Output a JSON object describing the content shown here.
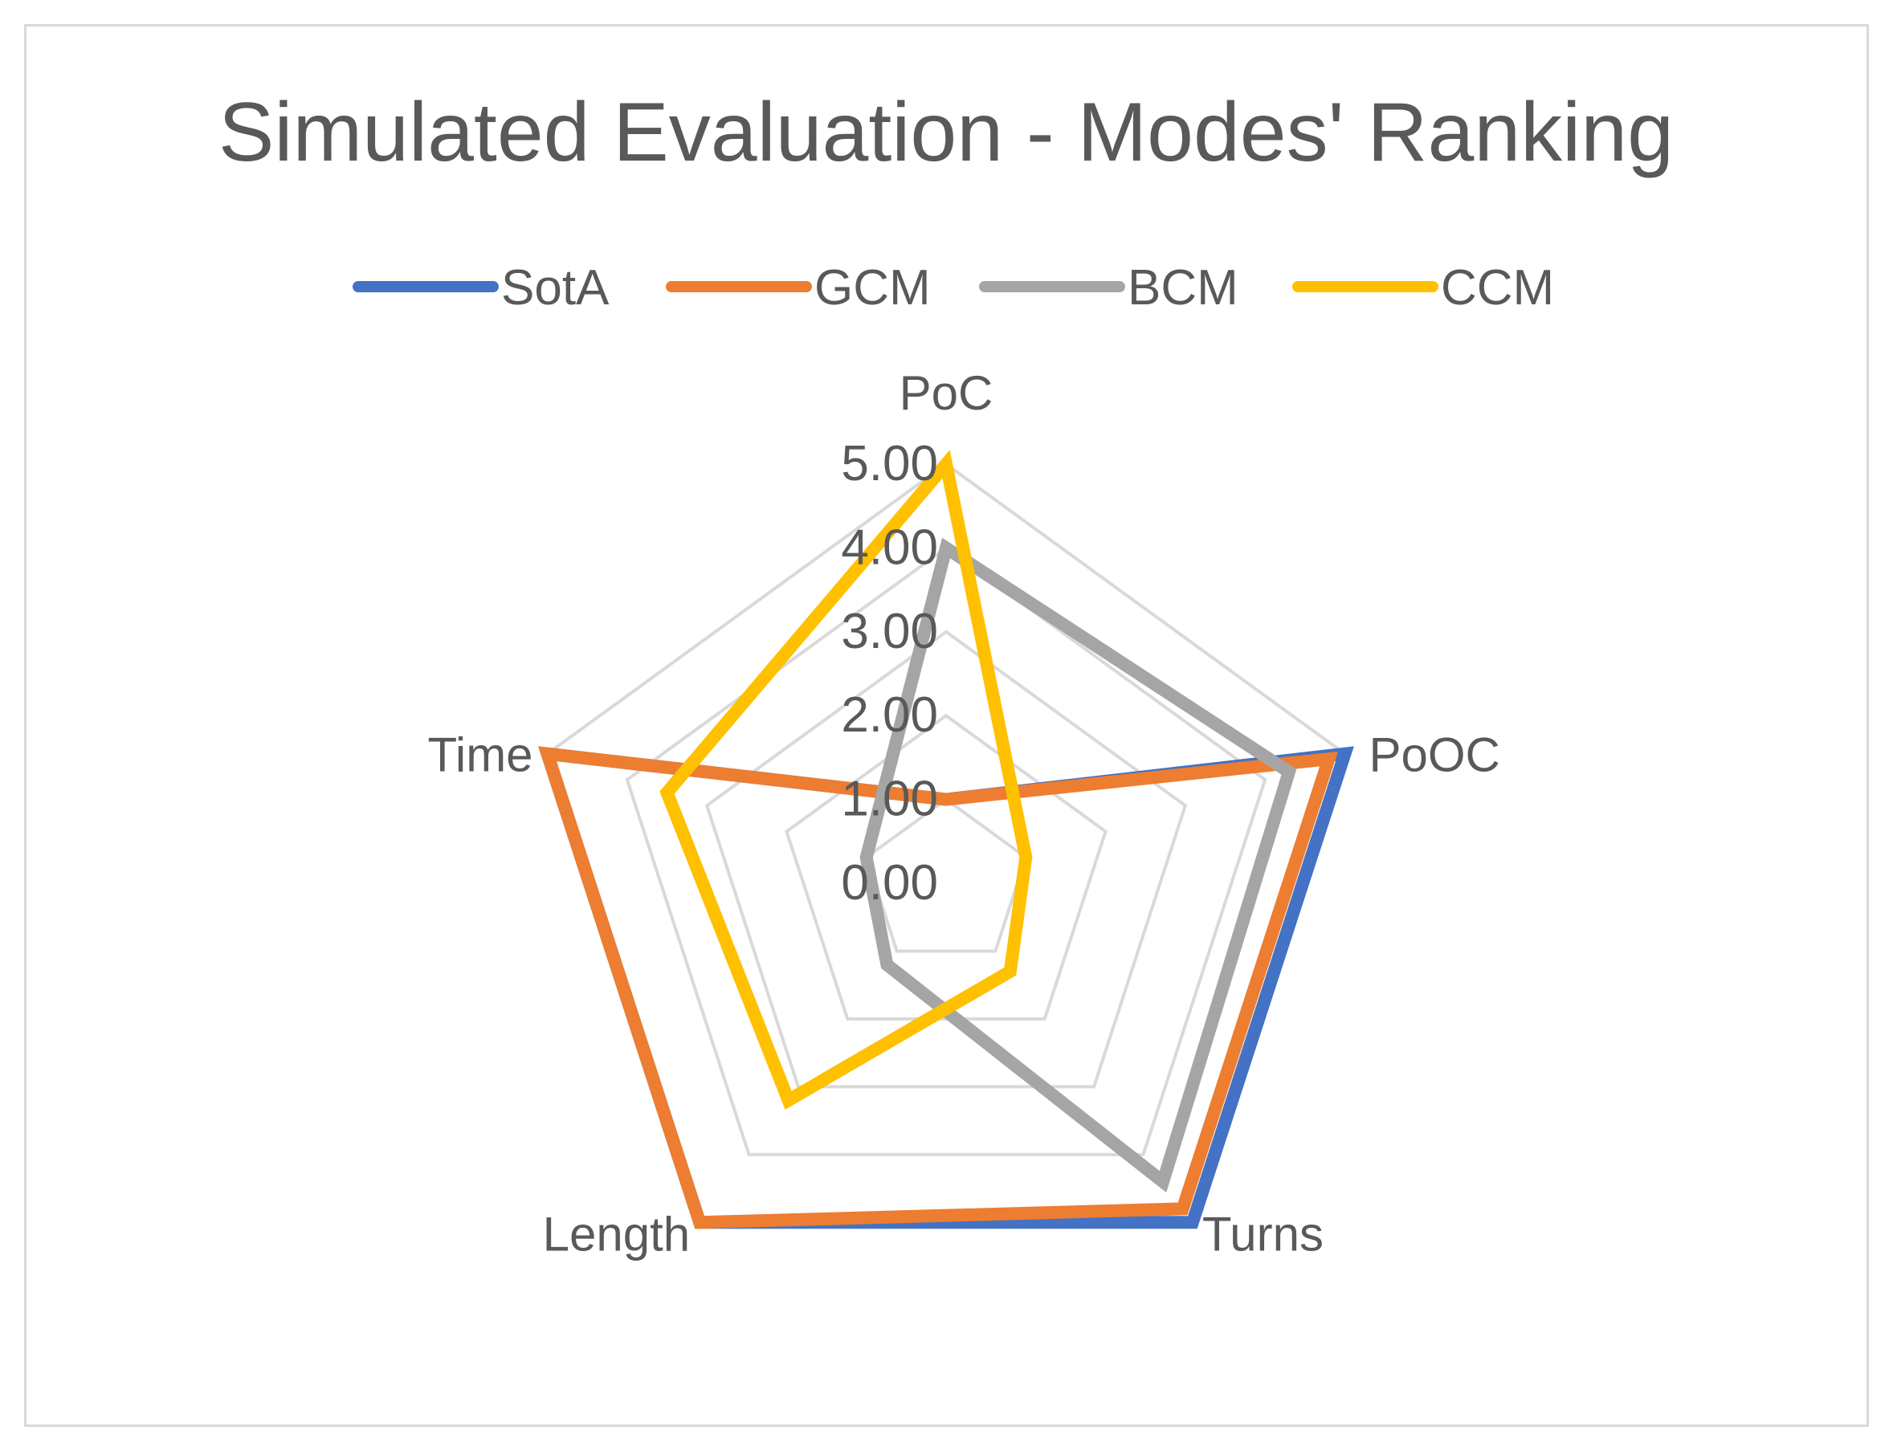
{
  "chart_data": {
    "type": "radar",
    "title": "Simulated Evaluation - Modes' Ranking",
    "axes": [
      "PoC",
      "PoOC",
      "Turns",
      "Length",
      "Time"
    ],
    "ticks": [
      "0.00",
      "1.00",
      "2.00",
      "3.00",
      "4.00",
      "5.00"
    ],
    "rlim": [
      0,
      5
    ],
    "legend_position": "top",
    "series": [
      {
        "name": "SotA",
        "color": "#4472C4",
        "values": [
          1,
          5,
          5,
          5,
          5
        ]
      },
      {
        "name": "GCM",
        "color": "#ED7D31",
        "values": [
          1,
          4.8,
          4.8,
          5,
          5
        ]
      },
      {
        "name": "BCM",
        "color": "#A5A5A5",
        "values": [
          4,
          4.3,
          4.4,
          1.2,
          1.0
        ]
      },
      {
        "name": "CCM",
        "color": "#FFC000",
        "values": [
          5,
          1.0,
          1.3,
          3.2,
          3.5
        ]
      }
    ]
  }
}
